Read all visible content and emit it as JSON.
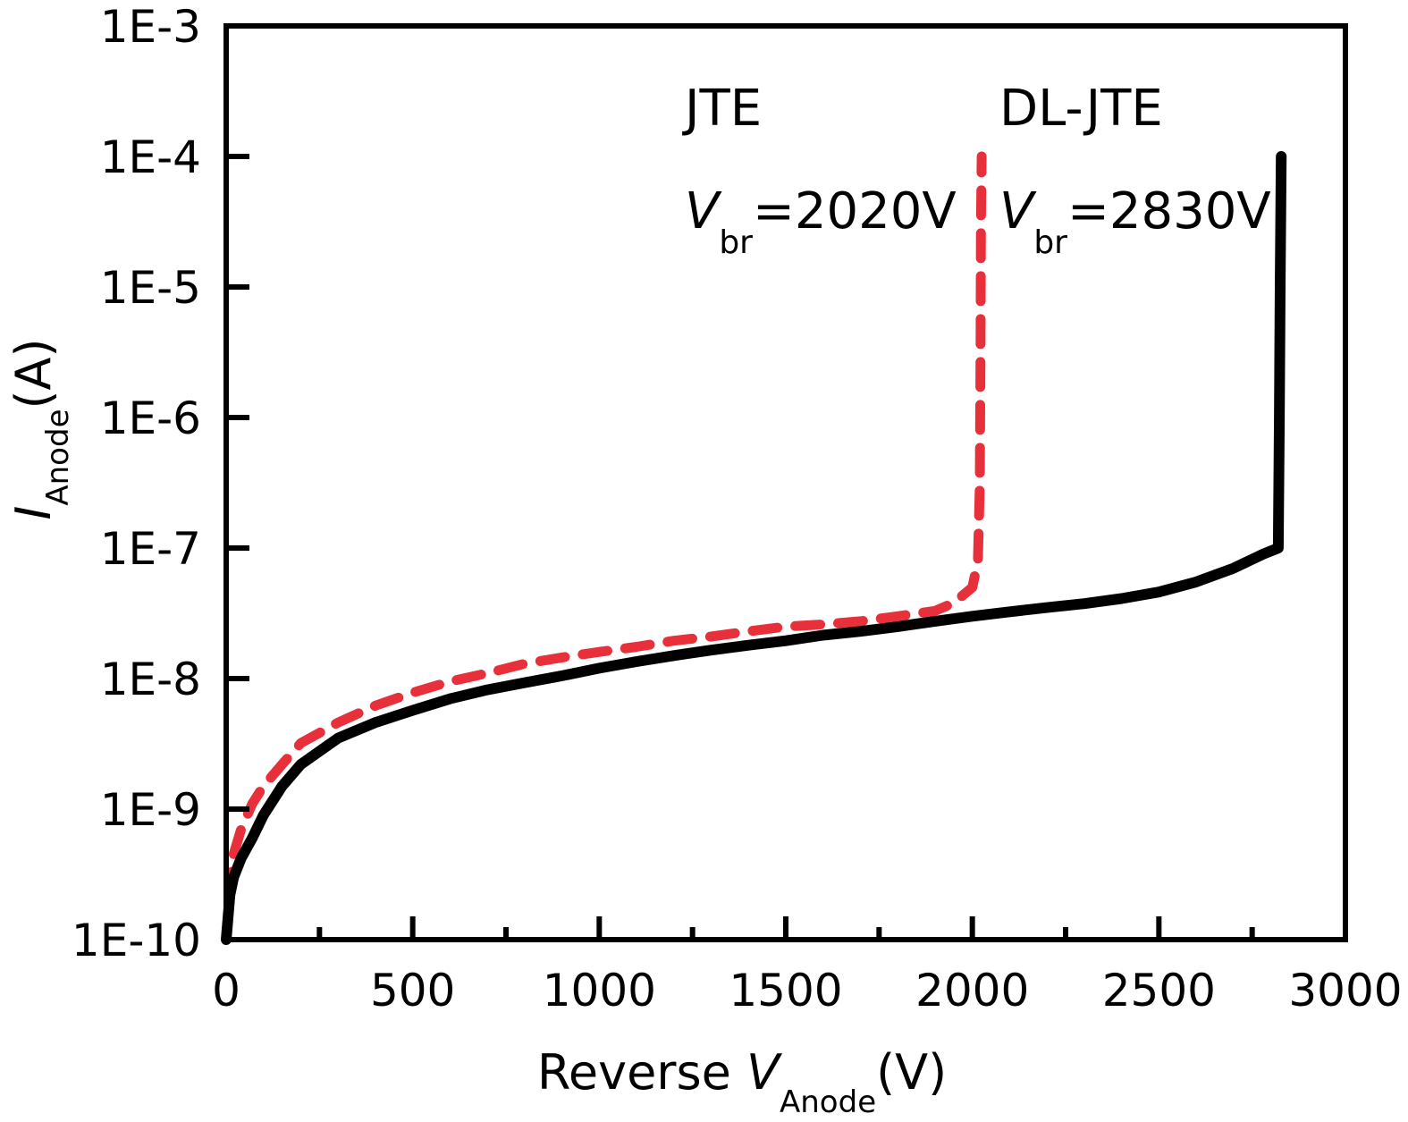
{
  "chart_data": {
    "type": "line",
    "xscale": "linear",
    "yscale": "log",
    "xlim": [
      0,
      3000
    ],
    "ylim": [
      1e-10,
      0.001
    ],
    "x_ticks": [
      0,
      500,
      1000,
      1500,
      2000,
      2500,
      3000
    ],
    "x_tick_labels": [
      "0",
      "500",
      "1000",
      "1500",
      "2000",
      "2500",
      "3000"
    ],
    "y_ticks": [
      1e-10,
      1e-09,
      1e-08,
      1e-07,
      1e-06,
      1e-05,
      0.0001,
      0.001
    ],
    "y_tick_labels": [
      "1E-10",
      "1E-9",
      "1E-8",
      "1E-7",
      "1E-6",
      "1E-5",
      "1E-4",
      "1E-3"
    ],
    "xlabel": {
      "prefix": "Reverse ",
      "symbol": "V",
      "subscript": "Anode",
      "suffix": "(V)"
    },
    "ylabel": {
      "symbol": "I",
      "subscript": "Anode",
      "suffix": "(A)"
    },
    "annotations": [
      {
        "name": "JTE",
        "vbr_symbol": "V",
        "vbr_subscript": "br",
        "vbr_value": "=2020V"
      },
      {
        "name": "DL-JTE",
        "vbr_symbol": "V",
        "vbr_subscript": "br",
        "vbr_value": "=2830V"
      }
    ],
    "series": [
      {
        "style": "dashed",
        "color": "#e8303a",
        "points": [
          [
            0,
            1e-10
          ],
          [
            10,
            2.5e-10
          ],
          [
            20,
            4.5e-10
          ],
          [
            40,
            7e-10
          ],
          [
            70,
            1.1e-09
          ],
          [
            100,
            1.5e-09
          ],
          [
            150,
            2.2e-09
          ],
          [
            200,
            3.2e-09
          ],
          [
            300,
            4.6e-09
          ],
          [
            400,
            6.2e-09
          ],
          [
            500,
            7.8e-09
          ],
          [
            600,
            9.5e-09
          ],
          [
            700,
            1.1e-08
          ],
          [
            800,
            1.3e-08
          ],
          [
            900,
            1.45e-08
          ],
          [
            1000,
            1.6e-08
          ],
          [
            1100,
            1.75e-08
          ],
          [
            1200,
            1.95e-08
          ],
          [
            1300,
            2.1e-08
          ],
          [
            1400,
            2.3e-08
          ],
          [
            1500,
            2.5e-08
          ],
          [
            1600,
            2.6e-08
          ],
          [
            1700,
            2.75e-08
          ],
          [
            1800,
            3e-08
          ],
          [
            1900,
            3.3e-08
          ],
          [
            1950,
            3.8e-08
          ],
          [
            2000,
            5e-08
          ],
          [
            2015,
            8e-08
          ],
          [
            2020,
            3e-07
          ],
          [
            2022,
            3e-06
          ],
          [
            2023,
            3e-05
          ],
          [
            2025,
            0.0001
          ]
        ]
      },
      {
        "style": "solid",
        "color": "#000000",
        "points": [
          [
            0,
            1e-10
          ],
          [
            10,
            2.2e-10
          ],
          [
            20,
            3e-10
          ],
          [
            40,
            4.2e-10
          ],
          [
            70,
            6e-10
          ],
          [
            100,
            9e-10
          ],
          [
            150,
            1.5e-09
          ],
          [
            200,
            2.2e-09
          ],
          [
            300,
            3.5e-09
          ],
          [
            400,
            4.6e-09
          ],
          [
            500,
            5.7e-09
          ],
          [
            600,
            7e-09
          ],
          [
            700,
            8.2e-09
          ],
          [
            800,
            9.3e-09
          ],
          [
            900,
            1.05e-08
          ],
          [
            1000,
            1.2e-08
          ],
          [
            1100,
            1.35e-08
          ],
          [
            1200,
            1.5e-08
          ],
          [
            1300,
            1.65e-08
          ],
          [
            1400,
            1.8e-08
          ],
          [
            1500,
            1.95e-08
          ],
          [
            1600,
            2.15e-08
          ],
          [
            1700,
            2.3e-08
          ],
          [
            1800,
            2.5e-08
          ],
          [
            1900,
            2.75e-08
          ],
          [
            2000,
            3e-08
          ],
          [
            2100,
            3.25e-08
          ],
          [
            2200,
            3.5e-08
          ],
          [
            2300,
            3.75e-08
          ],
          [
            2400,
            4.1e-08
          ],
          [
            2500,
            4.6e-08
          ],
          [
            2600,
            5.5e-08
          ],
          [
            2700,
            7e-08
          ],
          [
            2780,
            9e-08
          ],
          [
            2820,
            1e-07
          ],
          [
            2823,
            1e-06
          ],
          [
            2825,
            1e-05
          ],
          [
            2828,
            0.0001
          ]
        ]
      }
    ]
  }
}
